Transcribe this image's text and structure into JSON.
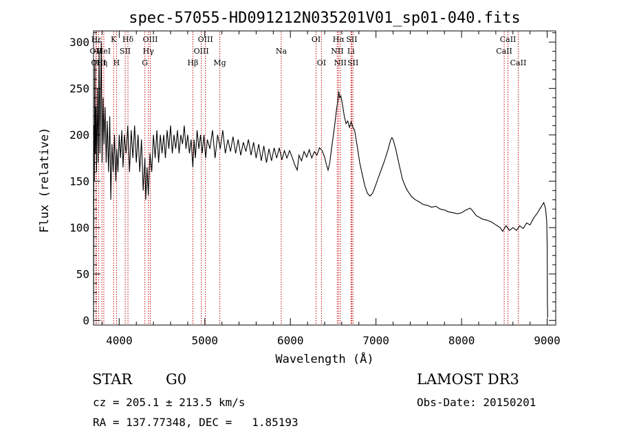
{
  "chart_data": {
    "type": "line",
    "title": "spec-57055-HD091212N035201V01_sp01-040.fits",
    "xlabel": "Wavelength (Å)",
    "ylabel": "Flux (relative)",
    "xlim": [
      3700,
      9100
    ],
    "ylim": [
      -5,
      312
    ],
    "x_ticks": [
      4000,
      5000,
      6000,
      7000,
      8000,
      9000
    ],
    "y_ticks": [
      0,
      50,
      100,
      150,
      200,
      250,
      300
    ],
    "series": [
      {
        "name": "spectrum",
        "points": [
          [
            3700,
            3
          ],
          [
            3705,
            210
          ],
          [
            3710,
            150
          ],
          [
            3715,
            280
          ],
          [
            3720,
            180
          ],
          [
            3728,
            230
          ],
          [
            3735,
            160
          ],
          [
            3745,
            250
          ],
          [
            3755,
            170
          ],
          [
            3765,
            290
          ],
          [
            3775,
            180
          ],
          [
            3790,
            300
          ],
          [
            3800,
            170
          ],
          [
            3812,
            240
          ],
          [
            3822,
            190
          ],
          [
            3835,
            230
          ],
          [
            3848,
            170
          ],
          [
            3860,
            215
          ],
          [
            3875,
            160
          ],
          [
            3890,
            220
          ],
          [
            3902,
            130
          ],
          [
            3915,
            190
          ],
          [
            3930,
            160
          ],
          [
            3945,
            200
          ],
          [
            3960,
            150
          ],
          [
            3972,
            185
          ],
          [
            3985,
            160
          ],
          [
            4000,
            200
          ],
          [
            4015,
            175
          ],
          [
            4030,
            205
          ],
          [
            4045,
            165
          ],
          [
            4060,
            200
          ],
          [
            4080,
            180
          ],
          [
            4100,
            210
          ],
          [
            4120,
            160
          ],
          [
            4140,
            205
          ],
          [
            4160,
            175
          ],
          [
            4180,
            210
          ],
          [
            4200,
            170
          ],
          [
            4220,
            200
          ],
          [
            4240,
            160
          ],
          [
            4260,
            195
          ],
          [
            4280,
            140
          ],
          [
            4300,
            175
          ],
          [
            4310,
            130
          ],
          [
            4325,
            165
          ],
          [
            4340,
            135
          ],
          [
            4360,
            180
          ],
          [
            4380,
            160
          ],
          [
            4400,
            200
          ],
          [
            4420,
            175
          ],
          [
            4440,
            205
          ],
          [
            4460,
            170
          ],
          [
            4480,
            200
          ],
          [
            4500,
            180
          ],
          [
            4520,
            200
          ],
          [
            4540,
            175
          ],
          [
            4560,
            205
          ],
          [
            4580,
            185
          ],
          [
            4600,
            210
          ],
          [
            4620,
            180
          ],
          [
            4640,
            200
          ],
          [
            4660,
            185
          ],
          [
            4680,
            205
          ],
          [
            4700,
            180
          ],
          [
            4720,
            200
          ],
          [
            4740,
            190
          ],
          [
            4760,
            210
          ],
          [
            4780,
            185
          ],
          [
            4800,
            200
          ],
          [
            4820,
            180
          ],
          [
            4840,
            195
          ],
          [
            4860,
            165
          ],
          [
            4875,
            195
          ],
          [
            4890,
            175
          ],
          [
            4910,
            205
          ],
          [
            4930,
            185
          ],
          [
            4950,
            200
          ],
          [
            4970,
            180
          ],
          [
            4990,
            200
          ],
          [
            5010,
            175
          ],
          [
            5030,
            195
          ],
          [
            5060,
            185
          ],
          [
            5090,
            205
          ],
          [
            5120,
            175
          ],
          [
            5150,
            200
          ],
          [
            5180,
            185
          ],
          [
            5210,
            205
          ],
          [
            5240,
            180
          ],
          [
            5270,
            195
          ],
          [
            5300,
            182
          ],
          [
            5330,
            198
          ],
          [
            5360,
            180
          ],
          [
            5390,
            195
          ],
          [
            5420,
            178
          ],
          [
            5450,
            192
          ],
          [
            5480,
            182
          ],
          [
            5510,
            195
          ],
          [
            5540,
            178
          ],
          [
            5570,
            192
          ],
          [
            5600,
            175
          ],
          [
            5630,
            190
          ],
          [
            5660,
            172
          ],
          [
            5690,
            188
          ],
          [
            5720,
            170
          ],
          [
            5750,
            185
          ],
          [
            5780,
            172
          ],
          [
            5810,
            186
          ],
          [
            5840,
            175
          ],
          [
            5870,
            186
          ],
          [
            5900,
            173
          ],
          [
            5930,
            183
          ],
          [
            5960,
            175
          ],
          [
            5990,
            183
          ],
          [
            6020,
            176
          ],
          [
            6050,
            168
          ],
          [
            6080,
            162
          ],
          [
            6100,
            178
          ],
          [
            6130,
            172
          ],
          [
            6160,
            182
          ],
          [
            6190,
            176
          ],
          [
            6220,
            184
          ],
          [
            6250,
            175
          ],
          [
            6280,
            182
          ],
          [
            6310,
            178
          ],
          [
            6340,
            186
          ],
          [
            6370,
            183
          ],
          [
            6400,
            176
          ],
          [
            6420,
            168
          ],
          [
            6440,
            162
          ],
          [
            6460,
            170
          ],
          [
            6480,
            185
          ],
          [
            6500,
            198
          ],
          [
            6520,
            212
          ],
          [
            6540,
            228
          ],
          [
            6555,
            237
          ],
          [
            6565,
            247
          ],
          [
            6575,
            240
          ],
          [
            6590,
            242
          ],
          [
            6610,
            232
          ],
          [
            6630,
            220
          ],
          [
            6650,
            212
          ],
          [
            6670,
            215
          ],
          [
            6690,
            208
          ],
          [
            6710,
            214
          ],
          [
            6730,
            208
          ],
          [
            6750,
            205
          ],
          [
            6780,
            188
          ],
          [
            6810,
            170
          ],
          [
            6840,
            157
          ],
          [
            6870,
            145
          ],
          [
            6900,
            137
          ],
          [
            6930,
            134
          ],
          [
            6960,
            137
          ],
          [
            6990,
            144
          ],
          [
            7020,
            152
          ],
          [
            7060,
            162
          ],
          [
            7100,
            172
          ],
          [
            7140,
            184
          ],
          [
            7170,
            194
          ],
          [
            7185,
            197
          ],
          [
            7200,
            195
          ],
          [
            7230,
            185
          ],
          [
            7270,
            168
          ],
          [
            7310,
            152
          ],
          [
            7350,
            143
          ],
          [
            7380,
            138
          ],
          [
            7420,
            133
          ],
          [
            7460,
            130
          ],
          [
            7500,
            128
          ],
          [
            7550,
            125
          ],
          [
            7600,
            124
          ],
          [
            7650,
            122
          ],
          [
            7700,
            123
          ],
          [
            7750,
            120
          ],
          [
            7800,
            119
          ],
          [
            7850,
            117
          ],
          [
            7900,
            116
          ],
          [
            7950,
            115
          ],
          [
            8000,
            116
          ],
          [
            8050,
            119
          ],
          [
            8100,
            121
          ],
          [
            8130,
            118
          ],
          [
            8170,
            113
          ],
          [
            8210,
            111
          ],
          [
            8250,
            109
          ],
          [
            8300,
            108
          ],
          [
            8350,
            106
          ],
          [
            8400,
            103
          ],
          [
            8450,
            100
          ],
          [
            8480,
            96
          ],
          [
            8520,
            102
          ],
          [
            8560,
            97
          ],
          [
            8600,
            100
          ],
          [
            8640,
            97
          ],
          [
            8680,
            102
          ],
          [
            8720,
            99
          ],
          [
            8760,
            105
          ],
          [
            8800,
            103
          ],
          [
            8840,
            110
          ],
          [
            8880,
            115
          ],
          [
            8920,
            121
          ],
          [
            8960,
            127
          ],
          [
            8980,
            121
          ],
          [
            8995,
            107
          ],
          [
            9000,
            80
          ],
          [
            9003,
            18
          ],
          [
            9006,
            3
          ]
        ]
      }
    ],
    "lines": [
      {
        "label": "Hε",
        "wave": 3734,
        "row": 1
      },
      {
        "label": "OII",
        "wave": 3727,
        "row": 2
      },
      {
        "label": "OIII",
        "wave": 3760,
        "row": 3
      },
      {
        "label": "Hη",
        "wave": 3798,
        "row": 3
      },
      {
        "label": "HeI",
        "wave": 3820,
        "row": 2
      },
      {
        "label": "K",
        "wave": 3934,
        "row": 1
      },
      {
        "label": "H",
        "wave": 3969,
        "row": 3
      },
      {
        "label": "SII",
        "wave": 4070,
        "row": 2
      },
      {
        "label": "Hδ",
        "wave": 4102,
        "row": 1
      },
      {
        "label": "OIII",
        "wave": 4363,
        "row": 1
      },
      {
        "label": "Hγ",
        "wave": 4341,
        "row": 2
      },
      {
        "label": "G",
        "wave": 4300,
        "row": 3
      },
      {
        "label": "Hβ",
        "wave": 4861,
        "row": 3
      },
      {
        "label": "OIII",
        "wave": 5007,
        "row": 1
      },
      {
        "label": "OIII",
        "wave": 4959,
        "row": 2
      },
      {
        "label": "Mg",
        "wave": 5175,
        "row": 3
      },
      {
        "label": "Na",
        "wave": 5893,
        "row": 2
      },
      {
        "label": "OI",
        "wave": 6300,
        "row": 1
      },
      {
        "label": "OI",
        "wave": 6363,
        "row": 3
      },
      {
        "label": "Hα",
        "wave": 6563,
        "row": 1
      },
      {
        "label": "NII",
        "wave": 6548,
        "row": 2
      },
      {
        "label": "NII",
        "wave": 6583,
        "row": 3
      },
      {
        "label": "SII",
        "wave": 6717,
        "row": 1
      },
      {
        "label": "Li",
        "wave": 6708,
        "row": 2
      },
      {
        "label": "SII",
        "wave": 6731,
        "row": 3
      },
      {
        "label": "CaII",
        "wave": 8542,
        "row": 1
      },
      {
        "label": "CaII",
        "wave": 8498,
        "row": 2
      },
      {
        "label": "CaII",
        "wave": 8662,
        "row": 3
      }
    ],
    "line_color": "#c00000"
  },
  "info": {
    "class_label": "STAR",
    "subclass_label": "G0",
    "survey": "LAMOST DR3",
    "cz": "cz = 205.1 ± 213.5 km/s",
    "obs_date": "Obs-Date: 20150201",
    "coords": "RA = 137.77348, DEC =   1.85193"
  }
}
